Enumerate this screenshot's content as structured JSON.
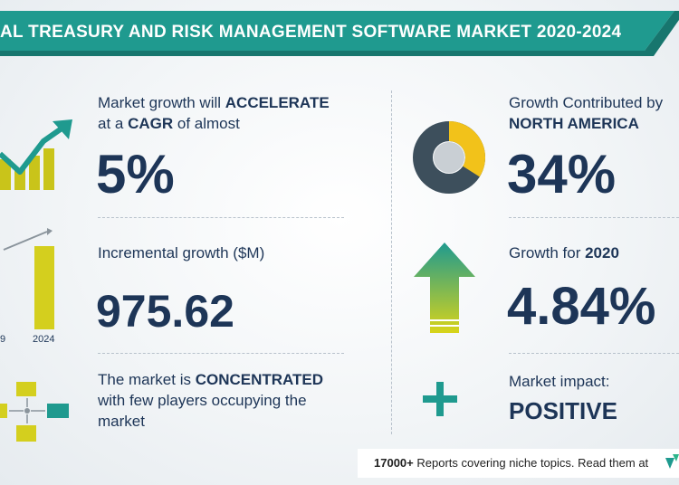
{
  "header": {
    "title": "AL TREASURY AND RISK MANAGEMENT SOFTWARE MARKET 2020-2024",
    "bg_color": "#1f9a8f"
  },
  "cagr": {
    "text_1": "Market growth will ",
    "emphasis_1": "ACCELERATE",
    "text_2": "at a ",
    "emphasis_2": "CAGR",
    "text_3": " of almost",
    "value": "5%"
  },
  "incremental": {
    "label": "Incremental growth ($M)",
    "value": "975.62",
    "chart_labels": [
      "9",
      "2024"
    ]
  },
  "concentration": {
    "text_1": "The market is ",
    "emphasis": "CONCENTRATED",
    "text_2": "with few players occupying the",
    "text_3": "market"
  },
  "region": {
    "label": "Growth Contributed by",
    "region_name": "NORTH AMERICA",
    "value": "34%",
    "share": 0.34
  },
  "year_growth": {
    "label": "Growth for ",
    "year": "2020",
    "value": "4.84%"
  },
  "impact": {
    "label": "Market impact:",
    "value": "POSITIVE"
  },
  "footer": {
    "count": "17000+",
    "text": "Reports covering niche topics. Read them at"
  },
  "colors": {
    "navy": "#1d3557",
    "teal": "#1f9a8f",
    "yellow": "#d4cf1e",
    "green": "#2db58a",
    "donut_gray": "#3d4f5c"
  }
}
